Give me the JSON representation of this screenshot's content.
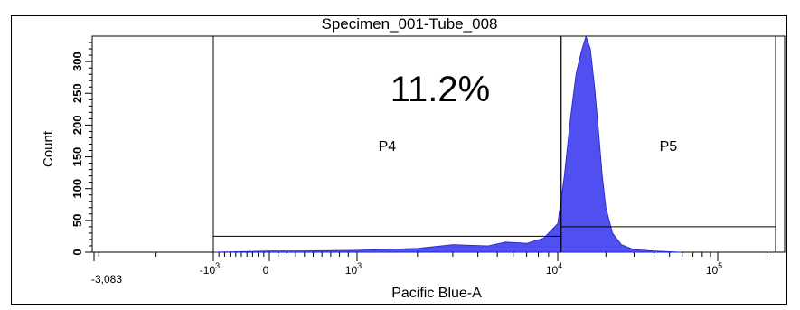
{
  "chart_data": {
    "type": "area",
    "title": "Specimen_001-Tube_008",
    "xlabel": "Pacific Blue-A",
    "ylabel": "Count",
    "xscale": "biexponential",
    "xlim": [
      -3083,
      250000
    ],
    "ylim": [
      0,
      340
    ],
    "x_tick_labels": [
      {
        "value": -3083,
        "text": "-3,083"
      },
      {
        "value": -1000,
        "base": "-10",
        "exp": "3"
      },
      {
        "value": 0,
        "base": "0",
        "exp": ""
      },
      {
        "value": 1000,
        "base": "10",
        "exp": "3"
      },
      {
        "value": 10000,
        "base": "10",
        "exp": "4"
      },
      {
        "value": 100000,
        "base": "10",
        "exp": "5"
      }
    ],
    "y_ticks": [
      0,
      50,
      100,
      150,
      200,
      250,
      300
    ],
    "y_tick_labels": [
      "0",
      "50",
      "100",
      "150",
      "200",
      "250",
      "300"
    ],
    "fill_color": "#5050f0",
    "series": [
      {
        "x": [
          -1000,
          0,
          300,
          1000,
          2000,
          3000,
          4500,
          5500,
          7000,
          8500,
          10000,
          11000,
          12000,
          13000,
          14000,
          15000,
          16000,
          17000,
          18000,
          19000,
          20000,
          22000,
          25000,
          30000,
          40000,
          60000
        ],
        "y": [
          0,
          2,
          2,
          3,
          6,
          12,
          10,
          16,
          14,
          22,
          45,
          120,
          210,
          280,
          315,
          340,
          320,
          260,
          190,
          120,
          70,
          30,
          12,
          4,
          2,
          0
        ]
      }
    ],
    "gates": [
      {
        "name": "P4",
        "x_range": [
          -1000,
          10500
        ],
        "y_level": 25
      },
      {
        "name": "P5",
        "x_range": [
          10500,
          250000
        ],
        "y_level": 40
      }
    ],
    "annotations": [
      {
        "text": "11.2%",
        "x": 3000,
        "y": 265
      }
    ]
  }
}
